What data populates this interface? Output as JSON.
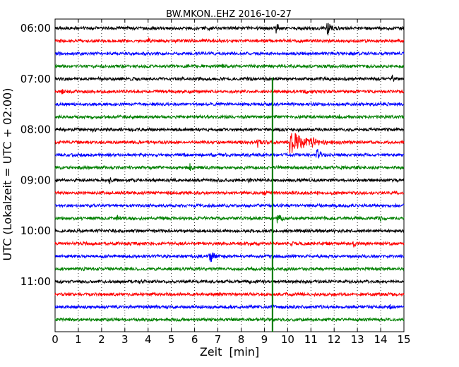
{
  "chart_data": {
    "type": "line",
    "title": "BW.MKON..EHZ 2016-10-27",
    "xlabel": "Zeit  [min]",
    "ylabel": "UTC (Lokalzeit = UTC + 02:00)",
    "xlim": [
      0,
      15
    ],
    "x_ticks": [
      "0",
      "1",
      "2",
      "3",
      "4",
      "5",
      "6",
      "7",
      "8",
      "9",
      "10",
      "11",
      "12",
      "13",
      "14",
      "15"
    ],
    "y_ticks": [
      "06:00",
      "07:00",
      "08:00",
      "09:00",
      "10:00",
      "11:00"
    ],
    "grid": "dotted-vertical",
    "trace_interval_min": 15,
    "line_colors": [
      "#000000",
      "#ff0000",
      "#0000ff",
      "#008000"
    ],
    "traces": [
      {
        "start": "06:00",
        "color": "#000000",
        "events": [
          {
            "t": 6.5,
            "a": 0.35
          },
          {
            "t": 9.5,
            "a": 0.8
          },
          {
            "t": 11.7,
            "a": 1.3
          }
        ]
      },
      {
        "start": "06:15",
        "color": "#ff0000",
        "events": [
          {
            "t": 4.0,
            "a": 0.5
          }
        ]
      },
      {
        "start": "06:30",
        "color": "#0000ff",
        "events": []
      },
      {
        "start": "06:45",
        "color": "#008000",
        "events": [
          {
            "t": 7.2,
            "a": 0.35
          }
        ]
      },
      {
        "start": "07:00",
        "color": "#000000",
        "events": [
          {
            "t": 6.2,
            "a": 0.3
          },
          {
            "t": 14.5,
            "a": 0.5
          }
        ]
      },
      {
        "start": "07:15",
        "color": "#ff0000",
        "events": [
          {
            "t": 0.3,
            "a": 0.35
          },
          {
            "t": 10.7,
            "a": 0.45
          }
        ]
      },
      {
        "start": "07:30",
        "color": "#0000ff",
        "events": []
      },
      {
        "start": "07:45",
        "color": "#008000",
        "events": [
          {
            "t": 12.2,
            "a": 0.25
          }
        ]
      },
      {
        "start": "08:00",
        "color": "#000000",
        "events": [
          {
            "t": 1.6,
            "a": 0.3
          },
          {
            "t": 9.0,
            "a": 0.2
          }
        ]
      },
      {
        "start": "08:15",
        "color": "#ff0000",
        "events": [
          {
            "t": 8.7,
            "a": 0.9
          },
          {
            "t": 10.1,
            "a": 2.0
          },
          {
            "t": 11.0,
            "a": 0.8
          }
        ]
      },
      {
        "start": "08:30",
        "color": "#0000ff",
        "events": [
          {
            "t": 11.25,
            "a": 1.3
          }
        ]
      },
      {
        "start": "08:45",
        "color": "#008000",
        "events": [
          {
            "t": 5.8,
            "a": 0.55
          },
          {
            "t": 9.3,
            "a": 0.25
          }
        ]
      },
      {
        "start": "09:00",
        "color": "#000000",
        "events": [
          {
            "t": 2.35,
            "a": 0.5
          },
          {
            "t": 8.3,
            "a": 0.4
          }
        ]
      },
      {
        "start": "09:15",
        "color": "#ff0000",
        "events": [
          {
            "t": 9.0,
            "a": 0.45
          }
        ]
      },
      {
        "start": "09:30",
        "color": "#0000ff",
        "events": [
          {
            "t": 6.6,
            "a": 0.25
          }
        ]
      },
      {
        "start": "09:45",
        "color": "#008000",
        "events": [
          {
            "t": 2.65,
            "a": 0.5
          },
          {
            "t": 9.55,
            "a": 1.0
          },
          {
            "t": 14.0,
            "a": 0.45
          }
        ]
      },
      {
        "start": "10:00",
        "color": "#000000",
        "events": []
      },
      {
        "start": "10:15",
        "color": "#ff0000",
        "events": [
          {
            "t": 10.2,
            "a": 0.45
          },
          {
            "t": 12.85,
            "a": 0.6
          }
        ]
      },
      {
        "start": "10:30",
        "color": "#0000ff",
        "events": [
          {
            "t": 6.65,
            "a": 1.3
          }
        ]
      },
      {
        "start": "10:45",
        "color": "#008000",
        "events": []
      },
      {
        "start": "11:00",
        "color": "#000000",
        "events": []
      },
      {
        "start": "11:15",
        "color": "#ff0000",
        "events": []
      },
      {
        "start": "11:30",
        "color": "#0000ff",
        "events": [
          {
            "t": 4.0,
            "a": 0.3
          },
          {
            "t": 14.4,
            "a": 0.45
          }
        ]
      },
      {
        "start": "11:45",
        "color": "#008000",
        "events": []
      }
    ],
    "vertical_marker": {
      "x": 9.35,
      "color": "#008000"
    }
  }
}
